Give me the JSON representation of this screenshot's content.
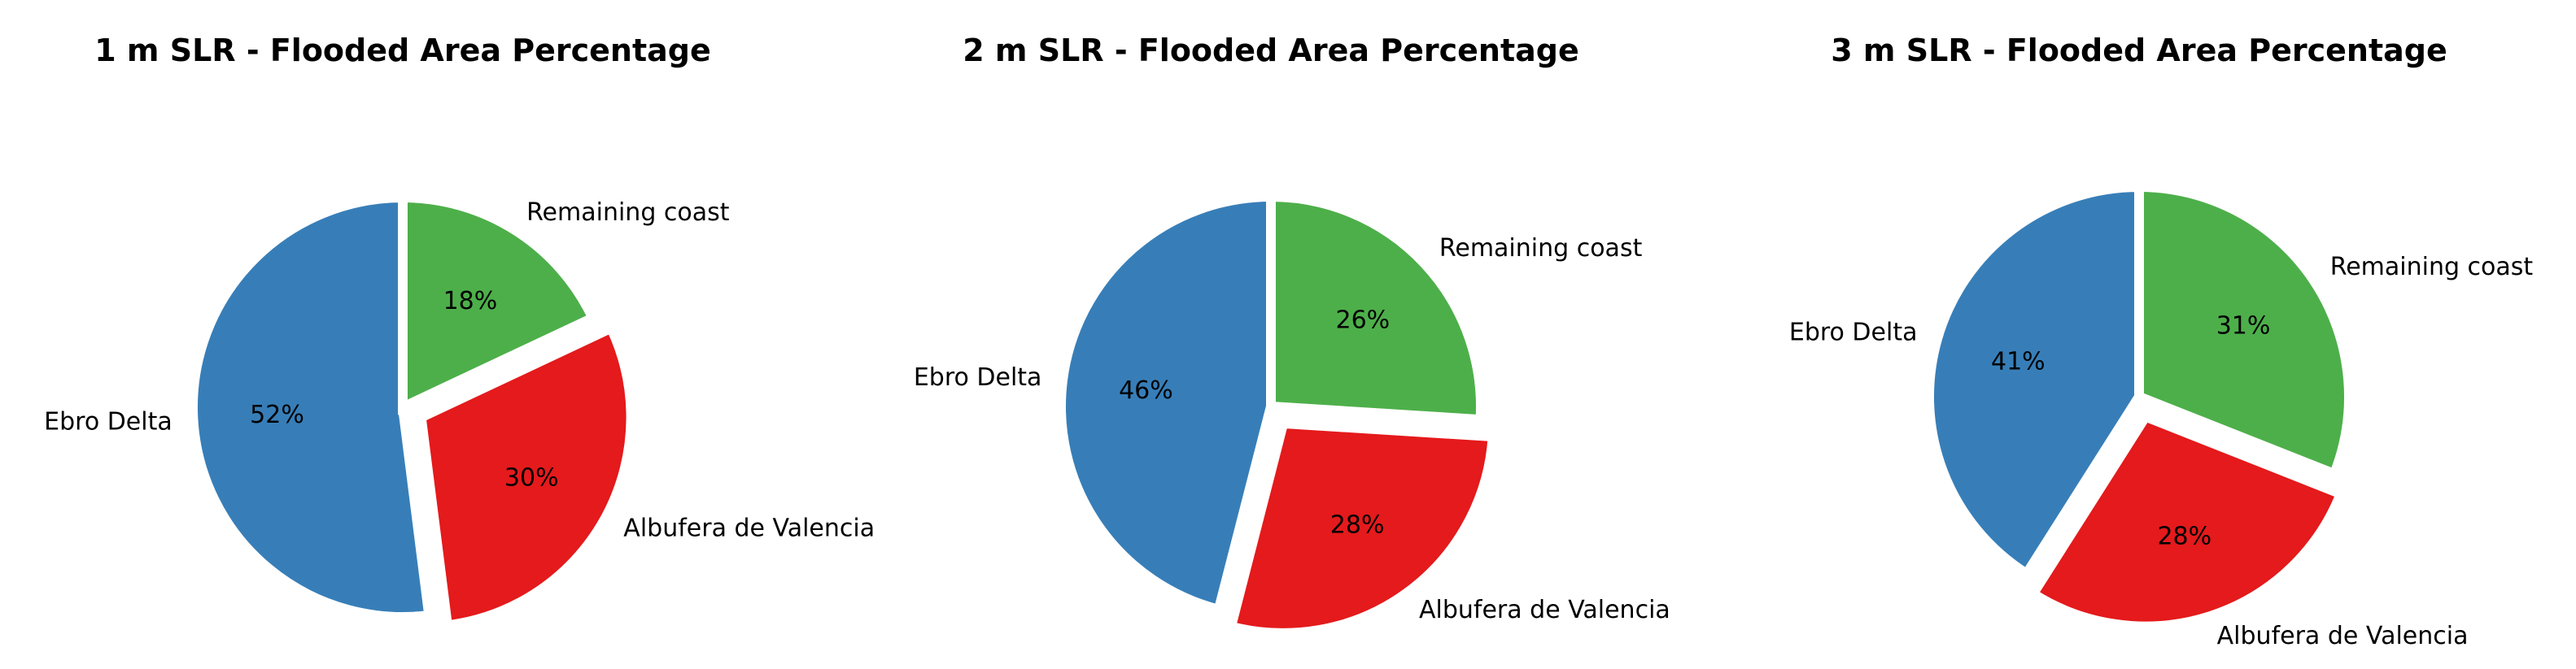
{
  "chart_data": [
    {
      "type": "pie",
      "title": "1 m SLR - Flooded Area Percentage",
      "categories": [
        "Ebro Delta",
        "Albufera de Valencia",
        "Remaining coast"
      ],
      "values": [
        52,
        30,
        18
      ],
      "value_labels": [
        "52%",
        "30%",
        "18%"
      ],
      "colors": [
        "#377eb8",
        "#e41a1c",
        "#4daf4a"
      ],
      "exploded": [
        "Albufera de Valencia"
      ]
    },
    {
      "type": "pie",
      "title": "2 m SLR - Flooded Area Percentage",
      "categories": [
        "Ebro Delta",
        "Albufera de Valencia",
        "Remaining coast"
      ],
      "values": [
        46,
        28,
        26
      ],
      "value_labels": [
        "46%",
        "28%",
        "26%"
      ],
      "colors": [
        "#377eb8",
        "#e41a1c",
        "#4daf4a"
      ],
      "exploded": [
        "Albufera de Valencia"
      ]
    },
    {
      "type": "pie",
      "title": "3 m SLR - Flooded Area Percentage",
      "categories": [
        "Ebro Delta",
        "Albufera de Valencia",
        "Remaining coast"
      ],
      "values": [
        41,
        28,
        31
      ],
      "value_labels": [
        "41%",
        "28%",
        "31%"
      ],
      "colors": [
        "#377eb8",
        "#e41a1c",
        "#4daf4a"
      ],
      "exploded": [
        "Albufera de Valencia"
      ]
    }
  ]
}
